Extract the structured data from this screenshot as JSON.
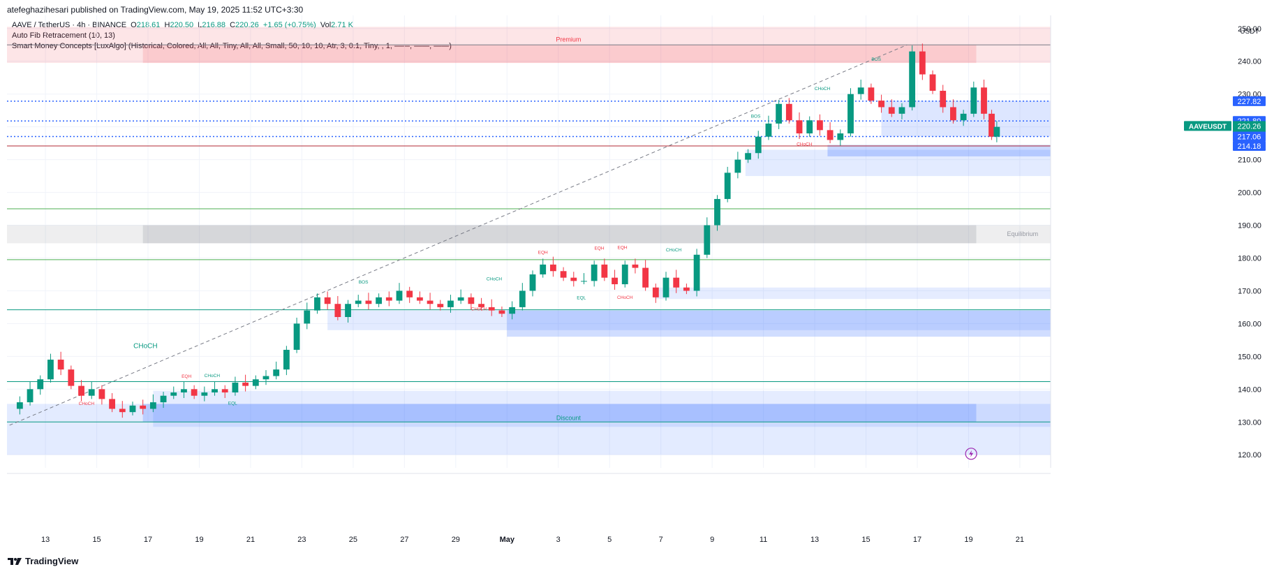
{
  "header": {
    "publisher_line": "atefeghazihesari published on TradingView.com, May 19, 2025 11:52 UTC+3:30"
  },
  "legend": {
    "symbol": "AAVE / TetherUS · 4h · BINANCE",
    "o_label": "O",
    "o_value": "218.61",
    "h_label": "H",
    "h_value": "220.50",
    "l_label": "L",
    "l_value": "216.88",
    "c_label": "C",
    "c_value": "220.26",
    "change": "+1.65 (+0.75%)",
    "vol_label": "Vol",
    "vol_value": "2.71 K",
    "indicator_1": "Auto Fib Retracement (10, 13)",
    "indicator_2": "Smart Money Concepts [LuxAlgo] (Historical, Colored, All, All, Tiny, All, All, Small, 50, 10, 10, Atr, 3, 0.1, Tiny, , 1, ——, ——, ——)"
  },
  "footer": {
    "brand": "TradingView"
  },
  "chart_data": {
    "type": "candlestick",
    "currency": "USDT",
    "ylim": [
      116,
      254
    ],
    "y_ticks": [
      120,
      130,
      140,
      150,
      160,
      170,
      180,
      190,
      200,
      210,
      220,
      230,
      240,
      250
    ],
    "x_ticks": [
      {
        "label": "13",
        "day": 13
      },
      {
        "label": "15",
        "day": 15
      },
      {
        "label": "17",
        "day": 17
      },
      {
        "label": "19",
        "day": 19
      },
      {
        "label": "21",
        "day": 21
      },
      {
        "label": "23",
        "day": 23
      },
      {
        "label": "25",
        "day": 25
      },
      {
        "label": "27",
        "day": 27
      },
      {
        "label": "29",
        "day": 29
      },
      {
        "label": "May",
        "day": 31
      },
      {
        "label": "3",
        "day": 33
      },
      {
        "label": "5",
        "day": 35
      },
      {
        "label": "7",
        "day": 37
      },
      {
        "label": "9",
        "day": 39
      },
      {
        "label": "11",
        "day": 41
      },
      {
        "label": "13",
        "day": 43
      },
      {
        "label": "15",
        "day": 45
      },
      {
        "label": "17",
        "day": 47
      },
      {
        "label": "19",
        "day": 49
      },
      {
        "label": "21",
        "day": 51
      }
    ],
    "day_range": [
      11.5,
      52.2
    ],
    "close_path": [
      [
        11.6,
        134
      ],
      [
        12.0,
        136
      ],
      [
        12.4,
        140
      ],
      [
        12.8,
        143
      ],
      [
        13.2,
        149
      ],
      [
        13.6,
        146
      ],
      [
        14.0,
        141
      ],
      [
        14.4,
        138
      ],
      [
        14.8,
        140
      ],
      [
        15.2,
        137
      ],
      [
        15.6,
        134
      ],
      [
        16.0,
        133
      ],
      [
        16.4,
        135
      ],
      [
        16.8,
        134
      ],
      [
        17.2,
        136
      ],
      [
        17.6,
        138
      ],
      [
        18.0,
        139
      ],
      [
        18.4,
        140
      ],
      [
        18.8,
        138
      ],
      [
        19.2,
        139
      ],
      [
        19.6,
        140
      ],
      [
        20.0,
        139
      ],
      [
        20.4,
        142
      ],
      [
        20.8,
        141
      ],
      [
        21.2,
        143
      ],
      [
        21.6,
        144
      ],
      [
        22.0,
        146
      ],
      [
        22.4,
        152
      ],
      [
        22.8,
        160
      ],
      [
        23.2,
        164
      ],
      [
        23.6,
        168
      ],
      [
        24.0,
        166
      ],
      [
        24.4,
        162
      ],
      [
        24.8,
        166
      ],
      [
        25.2,
        167
      ],
      [
        25.6,
        166
      ],
      [
        26.0,
        168
      ],
      [
        26.4,
        167
      ],
      [
        26.8,
        170
      ],
      [
        27.2,
        168
      ],
      [
        27.6,
        167
      ],
      [
        28.0,
        166
      ],
      [
        28.4,
        165
      ],
      [
        28.8,
        167
      ],
      [
        29.2,
        168
      ],
      [
        29.6,
        166
      ],
      [
        30.0,
        165
      ],
      [
        30.4,
        164
      ],
      [
        30.8,
        163
      ],
      [
        31.2,
        165
      ],
      [
        31.6,
        170
      ],
      [
        32.0,
        175
      ],
      [
        32.4,
        178
      ],
      [
        32.8,
        176
      ],
      [
        33.2,
        174
      ],
      [
        33.6,
        173
      ],
      [
        34.0,
        173
      ],
      [
        34.4,
        178
      ],
      [
        34.8,
        174
      ],
      [
        35.2,
        172
      ],
      [
        35.6,
        178
      ],
      [
        36.0,
        177
      ],
      [
        36.4,
        171
      ],
      [
        36.8,
        168
      ],
      [
        37.2,
        174
      ],
      [
        37.6,
        171
      ],
      [
        38.0,
        170
      ],
      [
        38.4,
        181
      ],
      [
        38.8,
        190
      ],
      [
        39.2,
        198
      ],
      [
        39.6,
        206
      ],
      [
        40.0,
        210
      ],
      [
        40.4,
        212
      ],
      [
        40.8,
        217
      ],
      [
        41.2,
        221
      ],
      [
        41.6,
        227
      ],
      [
        42.0,
        222
      ],
      [
        42.4,
        218
      ],
      [
        42.8,
        222
      ],
      [
        43.2,
        219
      ],
      [
        43.6,
        216
      ],
      [
        44.0,
        218
      ],
      [
        44.4,
        230
      ],
      [
        44.8,
        232
      ],
      [
        45.2,
        228
      ],
      [
        45.6,
        226
      ],
      [
        46.0,
        224
      ],
      [
        46.4,
        226
      ],
      [
        46.8,
        243
      ],
      [
        47.2,
        236
      ],
      [
        47.6,
        231
      ],
      [
        48.0,
        226
      ],
      [
        48.4,
        222
      ],
      [
        48.8,
        224
      ],
      [
        49.2,
        232
      ],
      [
        49.6,
        224
      ],
      [
        49.9,
        217
      ],
      [
        50.1,
        220
      ]
    ],
    "horizontal_lines": [
      {
        "value": 227.82,
        "style": "dotted",
        "color": "#2962ff"
      },
      {
        "value": 221.8,
        "style": "dotted",
        "color": "#2962ff"
      },
      {
        "value": 217.06,
        "style": "dotted",
        "color": "#2962ff"
      },
      {
        "value": 214.18,
        "style": "solid",
        "color": "#b22833"
      },
      {
        "value": 245.0,
        "style": "solid",
        "color": "#787b86"
      },
      {
        "value": 195.0,
        "style": "solid",
        "color": "#4caf50"
      },
      {
        "value": 179.5,
        "style": "solid",
        "color": "#4caf50"
      },
      {
        "value": 164.2,
        "style": "solid",
        "color": "#089981"
      },
      {
        "value": 142.3,
        "style": "solid",
        "color": "#089981"
      },
      {
        "value": 130.0,
        "style": "solid",
        "color": "#089981"
      }
    ],
    "zones": [
      {
        "label": "Premium",
        "top": 250.5,
        "bottom": 239.5,
        "color": "#f23645"
      },
      {
        "label": "Equilibrium",
        "top": 190.0,
        "bottom": 184.5,
        "color": "#787b86"
      },
      {
        "label": "Discount",
        "top": 135.5,
        "bottom": 120.0,
        "color": "#2962ff"
      }
    ],
    "price_labels": [
      {
        "text": "227.82",
        "value": 227.82,
        "color": "#2962ff"
      },
      {
        "text": "221.80",
        "value": 221.8,
        "color": "#2962ff"
      },
      {
        "text": "220.26",
        "value": 220.26,
        "color": "#089981"
      },
      {
        "text": "03:37:30",
        "value": 217.6,
        "color": "#089981"
      },
      {
        "text": "217.06",
        "value": 217.06,
        "color": "#2962ff"
      },
      {
        "text": "214.18",
        "value": 214.18,
        "color": "#2962ff"
      }
    ],
    "symbol_tag": "AAVEUSDT",
    "structure_labels": [
      {
        "text": "CHoCH",
        "day": 16.9,
        "value": 152.5,
        "color": "#089981"
      },
      {
        "text": "CHoCH",
        "day": 14.6,
        "value": 135.2,
        "color": "#f23645"
      },
      {
        "text": "EQH",
        "day": 18.5,
        "value": 143.5,
        "color": "#f23645"
      },
      {
        "text": "CHoCH",
        "day": 19.5,
        "value": 143.7,
        "color": "#089981"
      },
      {
        "text": "EQL",
        "day": 20.3,
        "value": 135.3,
        "color": "#089981"
      },
      {
        "text": "BOS",
        "day": 25.4,
        "value": 172.2,
        "color": "#089981"
      },
      {
        "text": "CHoCH",
        "day": 29.9,
        "value": 164.0,
        "color": "#f23645"
      },
      {
        "text": "CHoCH",
        "day": 30.5,
        "value": 173.2,
        "color": "#089981"
      },
      {
        "text": "EQH",
        "day": 32.4,
        "value": 181.3,
        "color": "#f23645"
      },
      {
        "text": "EQH",
        "day": 34.6,
        "value": 182.6,
        "color": "#f23645"
      },
      {
        "text": "EQH",
        "day": 35.5,
        "value": 182.8,
        "color": "#f23645"
      },
      {
        "text": "EQL",
        "day": 33.9,
        "value": 167.4,
        "color": "#089981"
      },
      {
        "text": "CHoCH",
        "day": 35.6,
        "value": 167.5,
        "color": "#f23645"
      },
      {
        "text": "CHoCH",
        "day": 37.5,
        "value": 182.0,
        "color": "#089981"
      },
      {
        "text": "BOS",
        "day": 40.7,
        "value": 222.8,
        "color": "#089981"
      },
      {
        "text": "CHoCH",
        "day": 43.3,
        "value": 231.2,
        "color": "#089981"
      },
      {
        "text": "CHoCH",
        "day": 42.6,
        "value": 214.3,
        "color": "#f23645"
      },
      {
        "text": "BOS",
        "day": 45.4,
        "value": 240.2,
        "color": "#089981"
      }
    ]
  }
}
